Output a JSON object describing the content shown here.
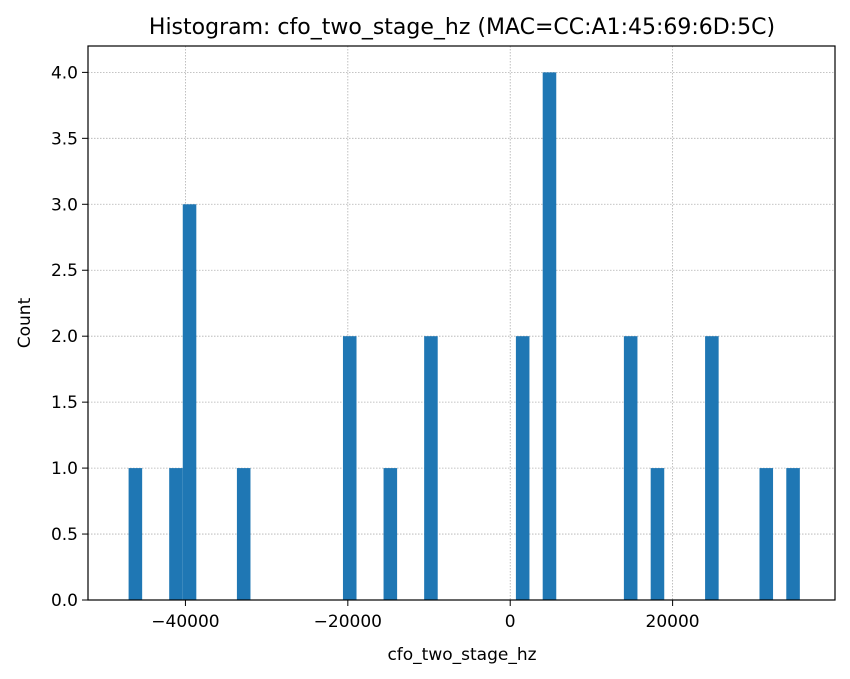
{
  "chart_data": {
    "type": "bar",
    "title": "Histogram: cfo_two_stage_hz (MAC=CC:A1:45:69:6D:5C)",
    "xlabel": "cfo_two_stage_hz",
    "ylabel": "Count",
    "xlim": [
      -52000,
      40000
    ],
    "ylim": [
      0,
      4.2
    ],
    "x_ticks": [
      -40000,
      -20000,
      0,
      20000
    ],
    "x_tick_labels": [
      "−40000",
      "−20000",
      "0",
      "20000"
    ],
    "y_ticks": [
      0,
      0.5,
      1.0,
      1.5,
      2.0,
      2.5,
      3.0,
      3.5,
      4.0
    ],
    "y_tick_labels": [
      "0.0",
      "0.5",
      "1.0",
      "1.5",
      "2.0",
      "2.5",
      "3.0",
      "3.5",
      "4.0"
    ],
    "grid": true,
    "bar_color": "#1f77b4",
    "bins": [
      {
        "x0": -47000,
        "x1": -45330,
        "count": 1
      },
      {
        "x0": -42000,
        "x1": -40330,
        "count": 1
      },
      {
        "x0": -40330,
        "x1": -38660,
        "count": 3
      },
      {
        "x0": -33660,
        "x1": -31990,
        "count": 1
      },
      {
        "x0": -20600,
        "x1": -18930,
        "count": 2
      },
      {
        "x0": -15600,
        "x1": -13930,
        "count": 1
      },
      {
        "x0": -10600,
        "x1": -8930,
        "count": 2
      },
      {
        "x0": 700,
        "x1": 2370,
        "count": 2
      },
      {
        "x0": 4000,
        "x1": 5670,
        "count": 4
      },
      {
        "x0": 14000,
        "x1": 15670,
        "count": 2
      },
      {
        "x0": 17300,
        "x1": 18970,
        "count": 1
      },
      {
        "x0": 24000,
        "x1": 25670,
        "count": 2
      },
      {
        "x0": 30700,
        "x1": 32370,
        "count": 1
      },
      {
        "x0": 34000,
        "x1": 35670,
        "count": 1
      }
    ]
  }
}
